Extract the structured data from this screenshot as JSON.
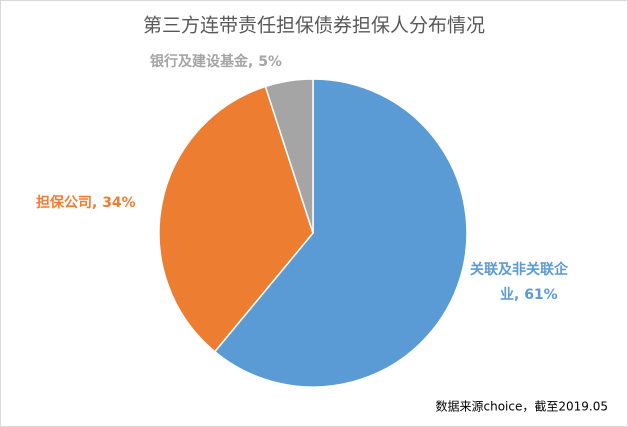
{
  "chart_data": {
    "type": "pie",
    "title": "第三方连带责任担保债券担保人分布情况",
    "labels": [
      "关联及非关联企业, 61%",
      "担保公司, 34%",
      "银行及建设基金, 5%"
    ],
    "values": [
      61,
      34,
      5
    ],
    "colors": [
      "#5b9bd5",
      "#ed7d31",
      "#a5a5a5"
    ],
    "source": "数据来源choice，截至2019.05"
  }
}
